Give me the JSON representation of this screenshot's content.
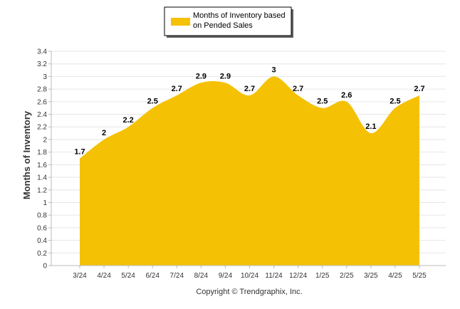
{
  "chart_data": {
    "type": "area",
    "categories": [
      "3/24",
      "4/24",
      "5/24",
      "6/24",
      "7/24",
      "8/24",
      "9/24",
      "10/24",
      "11/24",
      "12/24",
      "1/25",
      "2/25",
      "3/25",
      "4/25",
      "5/25"
    ],
    "series": [
      {
        "name": "Months of Inventory based on Pended Sales",
        "values": [
          1.7,
          2,
          2.2,
          2.5,
          2.7,
          2.9,
          2.9,
          2.7,
          3,
          2.7,
          2.5,
          2.6,
          2.1,
          2.5,
          2.7
        ],
        "labels": [
          "1.7",
          "2",
          "2.2",
          "2.5",
          "2.7",
          "2.9",
          "2.9",
          "2.7",
          "3",
          "2.7",
          "2.5",
          "2.6",
          "2.1",
          "2.5",
          "2.7"
        ],
        "color": "#F5C105"
      }
    ],
    "legend_lines": [
      "Months of Inventory based",
      "on Pended Sales"
    ],
    "ylabel": "Months of Inventory",
    "xlabel": "",
    "ylim": [
      0,
      3.4
    ],
    "yticks": [
      0,
      0.2,
      0.4,
      0.6,
      0.8,
      1,
      1.2,
      1.4,
      1.6,
      1.8,
      2,
      2.2,
      2.4,
      2.6,
      2.8,
      3,
      3.2,
      3.4
    ],
    "ytick_labels": [
      "0",
      "0.2",
      "0.4",
      "0.6",
      "0.8",
      "1",
      "1.2",
      "1.4",
      "1.6",
      "1.8",
      "2",
      "2.2",
      "2.4",
      "2.6",
      "2.8",
      "3",
      "3.2",
      "3.4"
    ],
    "grid": true,
    "legend_position": "top"
  },
  "footer": {
    "copyright": "Copyright © Trendgraphix, Inc."
  }
}
